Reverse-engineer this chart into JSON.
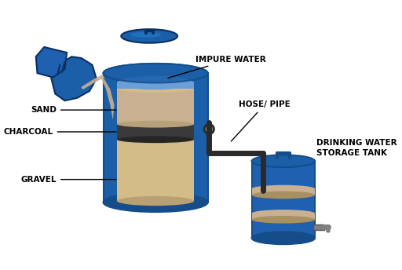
{
  "bg_color": "#ffffff",
  "blue_barrel": "#1a5fa8",
  "blue_dark": "#154d8a",
  "blue_light": "#2575c4",
  "sand_color": "#c8b090",
  "charcoal_color": "#3a3a3a",
  "gravel_color": "#d4bc88",
  "inner_light_blue": "#6a9fd8",
  "pipe_color": "#2a2a2a",
  "label_color": "#000000",
  "label_fontsize": 7.5,
  "labels": {
    "impure_water": "IMPURE WATER",
    "hose_pipe": "HOSE/ PIPE",
    "sand": "SAND",
    "charcoal": "CHARCOAL",
    "gravel": "GRAVEL",
    "storage_tank": "DRINKING WATER\nSTORAGE TANK"
  }
}
